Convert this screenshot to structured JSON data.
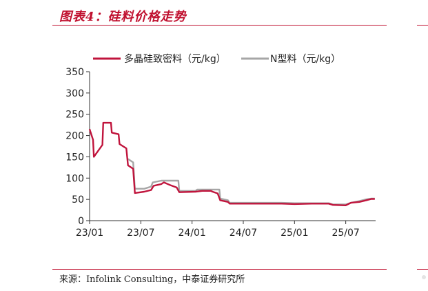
{
  "figure": {
    "title": "图表4：硅料价格走势",
    "source": "来源：Infolink Consulting，中泰证券研究所"
  },
  "chart_data": {
    "type": "line",
    "xlabel": "",
    "ylabel": "",
    "ylim": [
      0,
      350
    ],
    "yticks": [
      0,
      50,
      100,
      150,
      200,
      250,
      300,
      350
    ],
    "xticks": [
      {
        "label": "23/01",
        "pos": 0
      },
      {
        "label": "23/07",
        "pos": 6
      },
      {
        "label": "24/01",
        "pos": 12
      },
      {
        "label": "24/07",
        "pos": 18
      },
      {
        "label": "25/01",
        "pos": 24
      },
      {
        "label": "25/07",
        "pos": 30
      }
    ],
    "xlim": [
      0,
      33.5
    ],
    "legend": "top",
    "grid": false,
    "series": [
      {
        "name": "多晶硅致密料（元/kg）",
        "color": "#c0143c",
        "points": [
          [
            0,
            215
          ],
          [
            0.4,
            190
          ],
          [
            0.5,
            150
          ],
          [
            1.5,
            178
          ],
          [
            1.6,
            230
          ],
          [
            2.5,
            230
          ],
          [
            2.6,
            207
          ],
          [
            3.4,
            203
          ],
          [
            3.5,
            180
          ],
          [
            4.3,
            170
          ],
          [
            4.5,
            130
          ],
          [
            5.1,
            122
          ],
          [
            5.3,
            65
          ],
          [
            6.4,
            68
          ],
          [
            7.2,
            72
          ],
          [
            7.5,
            82
          ],
          [
            8.4,
            86
          ],
          [
            8.7,
            90
          ],
          [
            9.4,
            84
          ],
          [
            10.2,
            78
          ],
          [
            10.5,
            67
          ],
          [
            12.4,
            68
          ],
          [
            13.2,
            70
          ],
          [
            14.2,
            70
          ],
          [
            14.4,
            68
          ],
          [
            15.0,
            64
          ],
          [
            15.3,
            48
          ],
          [
            16.2,
            44
          ],
          [
            16.4,
            40
          ],
          [
            19.0,
            40
          ],
          [
            21.0,
            40
          ],
          [
            22.5,
            40
          ],
          [
            24.0,
            39
          ],
          [
            26.0,
            40
          ],
          [
            28.0,
            40
          ],
          [
            28.5,
            37
          ],
          [
            30.0,
            36
          ],
          [
            30.6,
            42
          ],
          [
            31.6,
            44
          ],
          [
            32.4,
            48
          ],
          [
            33.0,
            51
          ],
          [
            33.4,
            51
          ]
        ]
      },
      {
        "name": "N型料（元/kg）",
        "color": "#a6a6a6",
        "points": [
          [
            4.5,
            145
          ],
          [
            5.1,
            137
          ],
          [
            5.3,
            75
          ],
          [
            6.4,
            75
          ],
          [
            7.2,
            80
          ],
          [
            7.4,
            90
          ],
          [
            8.4,
            94
          ],
          [
            10.4,
            94
          ],
          [
            10.5,
            70
          ],
          [
            12.4,
            70
          ],
          [
            12.6,
            73
          ],
          [
            15.2,
            73
          ],
          [
            15.3,
            52
          ],
          [
            16.2,
            48
          ],
          [
            16.4,
            42
          ],
          [
            19.0,
            42
          ],
          [
            21.0,
            42
          ],
          [
            22.5,
            42
          ],
          [
            24.0,
            41
          ],
          [
            26.0,
            41
          ],
          [
            28.0,
            41
          ],
          [
            28.5,
            38
          ],
          [
            30.0,
            38
          ],
          [
            30.6,
            42
          ],
          [
            31.6,
            46
          ],
          [
            32.4,
            50
          ],
          [
            33.0,
            52
          ],
          [
            33.4,
            52
          ]
        ]
      }
    ]
  }
}
